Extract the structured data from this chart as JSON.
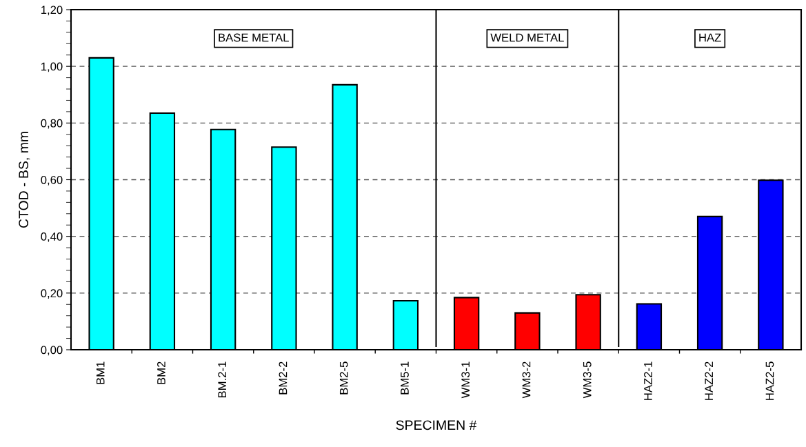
{
  "chart_data": {
    "type": "bar",
    "xlabel": "SPECIMEN #",
    "ylabel": "CTOD - BS, mm",
    "categories": [
      "BM1",
      "BM2",
      "BM.2-1",
      "BM2-2",
      "BM2-5",
      "BM5-1",
      "WM3-1",
      "WM3-2",
      "WM3-5",
      "HAZ2-1",
      "HAZ2-2",
      "HAZ2-5"
    ],
    "values": [
      1.03,
      0.835,
      0.777,
      0.715,
      0.935,
      0.173,
      0.184,
      0.13,
      0.194,
      0.162,
      0.47,
      0.598
    ],
    "colors": [
      "#00ffff",
      "#00ffff",
      "#00ffff",
      "#00ffff",
      "#00ffff",
      "#00ffff",
      "#ff0000",
      "#ff0000",
      "#ff0000",
      "#0000ff",
      "#0000ff",
      "#0000ff"
    ],
    "ylim": [
      0,
      1.2
    ],
    "yticks": [
      {
        "value": 0,
        "label": "0,00"
      },
      {
        "value": 0.2,
        "label": "0,20"
      },
      {
        "value": 0.4,
        "label": "0,40"
      },
      {
        "value": 0.6,
        "label": "0,60"
      },
      {
        "value": 0.8,
        "label": "0,80"
      },
      {
        "value": 1.0,
        "label": "1,00"
      },
      {
        "value": 1.2,
        "label": "1,20"
      }
    ],
    "grid": "y",
    "annotations": [
      "BASE METAL",
      "WELD METAL",
      "HAZ"
    ]
  }
}
